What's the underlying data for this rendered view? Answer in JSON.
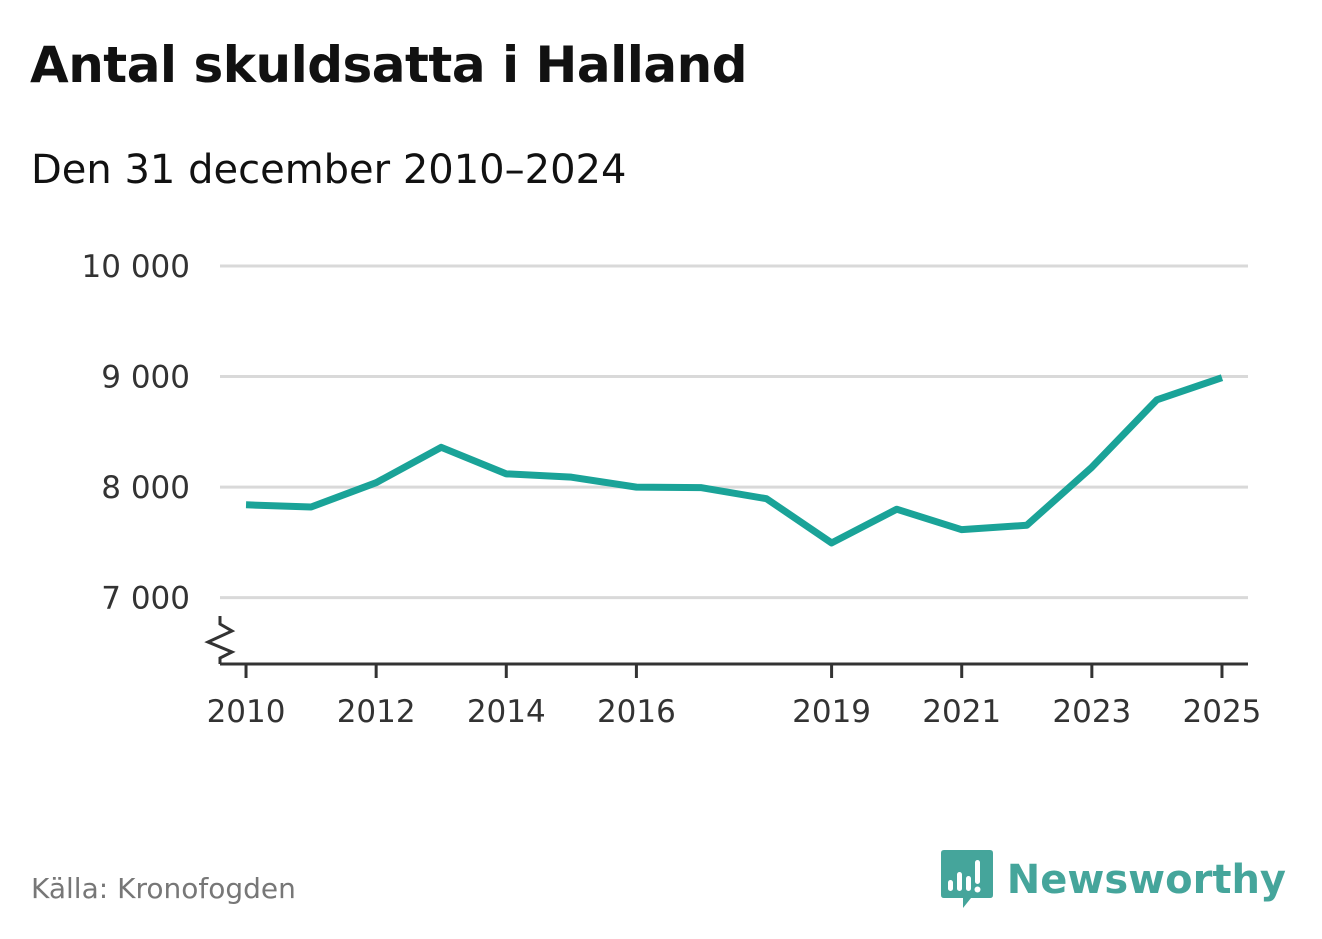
{
  "chart_data": {
    "type": "line",
    "title": "Antal skuldsatta i Halland",
    "subtitle": "Den 31 december 2010–2024",
    "xlabel": "",
    "ylabel": "",
    "x_tick_labels": [
      "2010",
      "2012",
      "2014",
      "2016",
      "2019",
      "2021",
      "2023",
      "2025"
    ],
    "y_tick_labels": [
      "10 000",
      "9 000",
      "8 000",
      "7 000"
    ],
    "y_ticks": [
      10000,
      9000,
      8000,
      7000
    ],
    "ylim": [
      6400,
      10000
    ],
    "xlim": [
      2009.6,
      2025.4
    ],
    "grid": true,
    "axis_break": true,
    "series": [
      {
        "name": "Antal skuldsatta",
        "color": "#1aa398",
        "points": [
          {
            "x": 2010.0,
            "y": 7840
          },
          {
            "x": 2011.0,
            "y": 7820
          },
          {
            "x": 2012.0,
            "y": 8040
          },
          {
            "x": 2013.0,
            "y": 8360
          },
          {
            "x": 2014.0,
            "y": 8120
          },
          {
            "x": 2015.0,
            "y": 8090
          },
          {
            "x": 2016.0,
            "y": 8000
          },
          {
            "x": 2017.0,
            "y": 7995
          },
          {
            "x": 2018.0,
            "y": 7895
          },
          {
            "x": 2019.0,
            "y": 7495
          },
          {
            "x": 2020.0,
            "y": 7800
          },
          {
            "x": 2021.0,
            "y": 7615
          },
          {
            "x": 2022.0,
            "y": 7655
          },
          {
            "x": 2023.0,
            "y": 8180
          },
          {
            "x": 2024.0,
            "y": 8790
          },
          {
            "x": 2025.0,
            "y": 8990
          }
        ]
      }
    ]
  },
  "source": "Källa: Kronofogden",
  "brand": {
    "name": "Newsworthy",
    "logo_icon": "newsworthy-logo-icon",
    "color": "#45a59b"
  }
}
